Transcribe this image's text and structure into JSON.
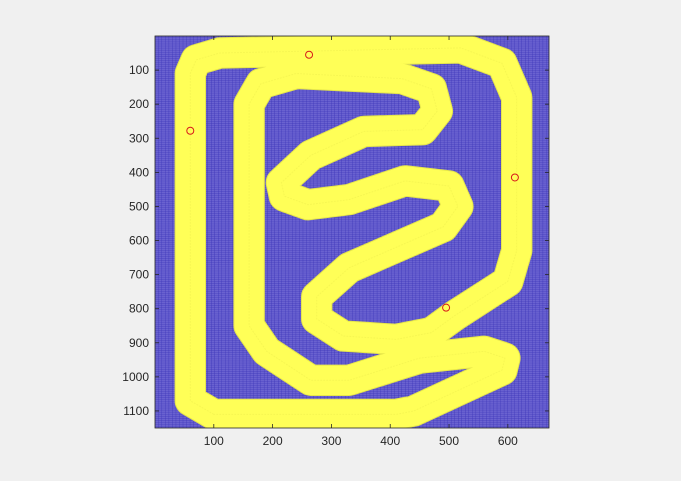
{
  "colors": {
    "figure_background": "#f0f0f0",
    "free_cell": "#6a62d0",
    "grid_line": "#3a33b8",
    "track": "#ffff57",
    "track_edge": "#e6e64a",
    "waypoint_marker": "#d81b1b",
    "axis": "#262626"
  },
  "chart_data": {
    "type": "heatmap",
    "title": "",
    "xlabel": "",
    "ylabel": "",
    "xlim": [
      0,
      670
    ],
    "ylim": [
      1150,
      0
    ],
    "y_reversed": true,
    "grid": true,
    "grid_step": 6,
    "xticks": [
      100,
      200,
      300,
      400,
      500,
      600
    ],
    "xtick_labels": [
      "100",
      "200",
      "300",
      "400",
      "500",
      "600"
    ],
    "yticks": [
      100,
      200,
      300,
      400,
      500,
      600,
      700,
      800,
      900,
      1000,
      1100
    ],
    "ytick_labels": [
      "100",
      "200",
      "300",
      "400",
      "500",
      "600",
      "700",
      "800",
      "900",
      "1000",
      "1100"
    ],
    "track": {
      "width": 50,
      "path": [
        [
          100,
          1110
        ],
        [
          410,
          1110
        ],
        [
          440,
          1100
        ],
        [
          590,
          980
        ],
        [
          595,
          945
        ],
        [
          560,
          925
        ],
        [
          450,
          945
        ],
        [
          330,
          1010
        ],
        [
          265,
          1010
        ],
        [
          190,
          925
        ],
        [
          160,
          850
        ],
        [
          160,
          200
        ],
        [
          180,
          140
        ],
        [
          240,
          110
        ],
        [
          420,
          125
        ],
        [
          470,
          155
        ],
        [
          480,
          220
        ],
        [
          455,
          275
        ],
        [
          355,
          280
        ],
        [
          265,
          350
        ],
        [
          215,
          430
        ],
        [
          220,
          470
        ],
        [
          260,
          495
        ],
        [
          330,
          480
        ],
        [
          425,
          425
        ],
        [
          500,
          440
        ],
        [
          515,
          500
        ],
        [
          490,
          560
        ],
        [
          330,
          680
        ],
        [
          275,
          765
        ],
        [
          275,
          830
        ],
        [
          320,
          880
        ],
        [
          410,
          890
        ],
        [
          470,
          870
        ],
        [
          510,
          820
        ],
        [
          600,
          720
        ],
        [
          615,
          630
        ],
        [
          615,
          180
        ],
        [
          590,
          80
        ],
        [
          520,
          35
        ],
        [
          110,
          50
        ],
        [
          70,
          70
        ],
        [
          60,
          110
        ],
        [
          60,
          1070
        ],
        [
          100,
          1110
        ]
      ]
    },
    "waypoints": [
      {
        "x": 262,
        "y": 55
      },
      {
        "x": 60,
        "y": 278
      },
      {
        "x": 612,
        "y": 415
      },
      {
        "x": 495,
        "y": 797
      }
    ]
  }
}
